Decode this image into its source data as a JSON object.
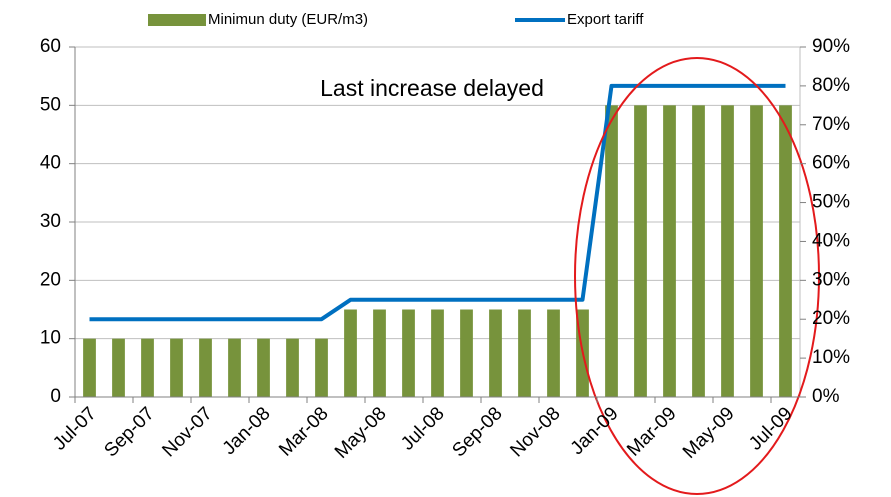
{
  "chart_data": {
    "type": "bar-line",
    "annotation": "Last increase delayed",
    "categories": [
      "Jul-07",
      null,
      "Sep-07",
      null,
      "Nov-07",
      null,
      "Jan-08",
      null,
      "Mar-08",
      null,
      "May-08",
      null,
      "Jul-08",
      null,
      "Sep-08",
      null,
      "Nov-08",
      null,
      "Jan-09",
      null,
      "Mar-09",
      null,
      "May-09",
      null,
      "Jul-09"
    ],
    "series": [
      {
        "name": "Minimun duty (EUR/m3)",
        "type": "bar",
        "color": "#77933c",
        "axis": "y",
        "values": [
          10,
          10,
          10,
          10,
          10,
          10,
          10,
          10,
          10,
          15,
          15,
          15,
          15,
          15,
          15,
          15,
          15,
          15,
          50,
          50,
          50,
          50,
          50,
          50,
          50
        ]
      },
      {
        "name": "Export tariff",
        "type": "line",
        "color": "#0070c0",
        "axis": "y2",
        "values": [
          20,
          20,
          20,
          20,
          20,
          20,
          20,
          20,
          20,
          25,
          25,
          25,
          25,
          25,
          25,
          25,
          25,
          25,
          80,
          80,
          80,
          80,
          80,
          80,
          80
        ]
      }
    ],
    "ylim": [
      0,
      60
    ],
    "yticks": [
      0,
      10,
      20,
      30,
      40,
      50,
      60
    ],
    "y2lim": [
      0,
      90
    ],
    "y2ticks": [
      {
        "value": 0,
        "label": "0%"
      },
      {
        "value": 10,
        "label": "10%"
      },
      {
        "value": 20,
        "label": "20%"
      },
      {
        "value": 30,
        "label": "30%"
      },
      {
        "value": 40,
        "label": "40%"
      },
      {
        "value": 50,
        "label": "50%"
      },
      {
        "value": 60,
        "label": "60%"
      },
      {
        "value": 70,
        "label": "70%"
      },
      {
        "value": 80,
        "label": "80%"
      },
      {
        "value": 90,
        "label": "90%"
      }
    ],
    "grid": true,
    "legend": "top"
  }
}
